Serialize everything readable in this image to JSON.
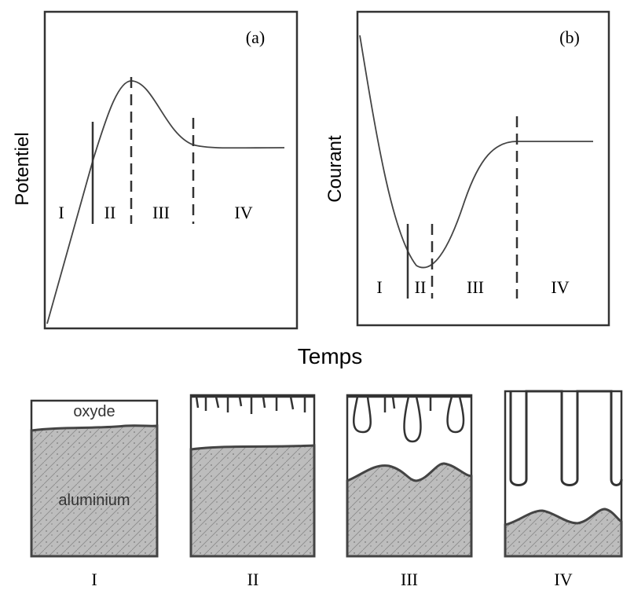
{
  "panels": [
    {
      "label": "(a)",
      "y_label": "Potentiel",
      "regions": [
        "I",
        "II",
        "III",
        "IV"
      ]
    },
    {
      "label": "(b)",
      "y_label": "Courant",
      "regions": [
        "I",
        "II",
        "III",
        "IV"
      ]
    }
  ],
  "x_label": "Temps",
  "stages": {
    "oxide_label": "oxyde",
    "metal_label": "aluminium",
    "labels": [
      "I",
      "II",
      "III",
      "IV"
    ]
  }
}
